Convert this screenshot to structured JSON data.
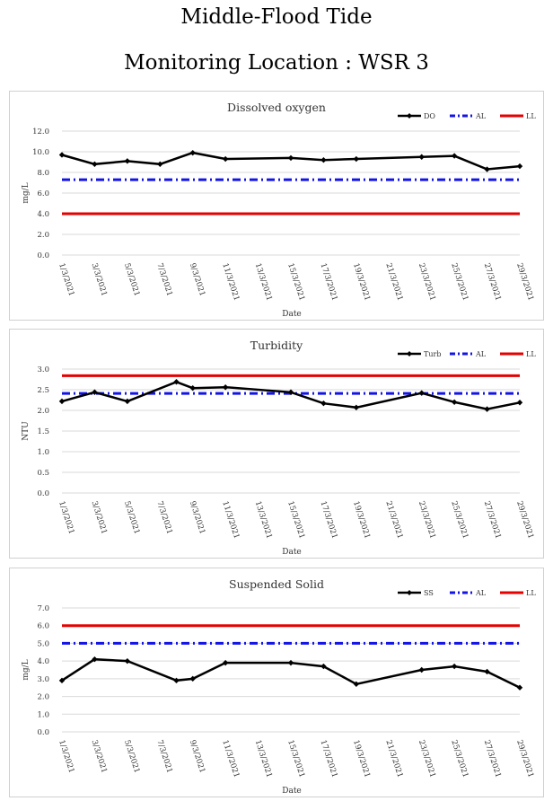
{
  "header": {
    "title": "Middle-Flood Tide",
    "subtitle": "Monitoring Location : WSR 3"
  },
  "colors": {
    "series": "#000000",
    "al": "#1414e6",
    "ll": "#e60000",
    "grid": "#d9d9d9"
  },
  "chart_data": [
    {
      "type": "line",
      "title": "Dissolved oxygen",
      "xlabel": "Date",
      "ylabel": "mg/L",
      "ylim": [
        0,
        12
      ],
      "ystep": 2,
      "ytick_decimals": 1,
      "legend_position": "top-right",
      "categories": [
        "1/3/2021",
        "3/3/2021",
        "5/3/2021",
        "7/3/2021",
        "9/3/2021",
        "11/3/2021",
        "13/3/2021",
        "15/3/2021",
        "17/3/2021",
        "19/3/2021",
        "21/3/2021",
        "23/3/2021",
        "25/3/2021",
        "27/3/2021",
        "29/3/2021"
      ],
      "series": [
        {
          "name": "DO",
          "role": "data",
          "x": [
            1,
            3,
            5,
            7,
            9,
            11,
            15,
            17,
            19,
            23,
            25,
            27,
            29
          ],
          "values": [
            9.7,
            8.8,
            9.1,
            8.8,
            9.9,
            9.3,
            9.4,
            9.2,
            9.3,
            9.5,
            9.6,
            8.3,
            8.6
          ]
        },
        {
          "name": "AL",
          "role": "al",
          "x": [
            1,
            29
          ],
          "values": [
            7.3,
            7.3
          ]
        },
        {
          "name": "LL",
          "role": "ll",
          "x": [
            1,
            29
          ],
          "values": [
            4.0,
            4.0
          ]
        }
      ]
    },
    {
      "type": "line",
      "title": "Turbidity",
      "xlabel": "Date",
      "ylabel": "NTU",
      "ylim": [
        0,
        3
      ],
      "ystep": 0.5,
      "ytick_decimals": 1,
      "legend_position": "top-right",
      "categories": [
        "1/3/2021",
        "3/3/2021",
        "5/3/2021",
        "7/3/2021",
        "9/3/2021",
        "11/3/2021",
        "13/3/2021",
        "15/3/2021",
        "17/3/2021",
        "19/3/2021",
        "21/3/2021",
        "23/3/2021",
        "25/3/2021",
        "27/3/2021",
        "29/3/2021"
      ],
      "series": [
        {
          "name": "Turb",
          "role": "data",
          "x": [
            1,
            3,
            5,
            8,
            9,
            11,
            15,
            17,
            19,
            23,
            25,
            27,
            29
          ],
          "values": [
            2.22,
            2.44,
            2.22,
            2.69,
            2.54,
            2.56,
            2.44,
            2.17,
            2.07,
            2.42,
            2.2,
            2.03,
            2.19
          ]
        },
        {
          "name": "AL",
          "role": "al",
          "x": [
            1,
            29
          ],
          "values": [
            2.41,
            2.41
          ]
        },
        {
          "name": "LL",
          "role": "ll",
          "x": [
            1,
            29
          ],
          "values": [
            2.84,
            2.84
          ]
        }
      ]
    },
    {
      "type": "line",
      "title": "Suspended Solid",
      "xlabel": "Date",
      "ylabel": "mg/L",
      "ylim": [
        0,
        7
      ],
      "ystep": 1,
      "ytick_decimals": 1,
      "legend_position": "top-right",
      "categories": [
        "1/3/2021",
        "3/3/2021",
        "5/3/2021",
        "7/3/2021",
        "9/3/2021",
        "11/3/2021",
        "13/3/2021",
        "15/3/2021",
        "17/3/2021",
        "19/3/2021",
        "21/3/2021",
        "23/3/2021",
        "25/3/2021",
        "27/3/2021",
        "29/3/2021"
      ],
      "series": [
        {
          "name": "SS",
          "role": "data",
          "x": [
            1,
            3,
            5,
            8,
            9,
            11,
            15,
            17,
            19,
            23,
            25,
            27,
            29
          ],
          "values": [
            2.9,
            4.1,
            4.0,
            2.9,
            3.0,
            3.9,
            3.9,
            3.7,
            2.7,
            3.5,
            3.7,
            3.4,
            2.5
          ]
        },
        {
          "name": "AL",
          "role": "al",
          "x": [
            1,
            29
          ],
          "values": [
            5.0,
            5.0
          ]
        },
        {
          "name": "LL",
          "role": "ll",
          "x": [
            1,
            29
          ],
          "values": [
            6.0,
            6.0
          ]
        }
      ]
    }
  ]
}
